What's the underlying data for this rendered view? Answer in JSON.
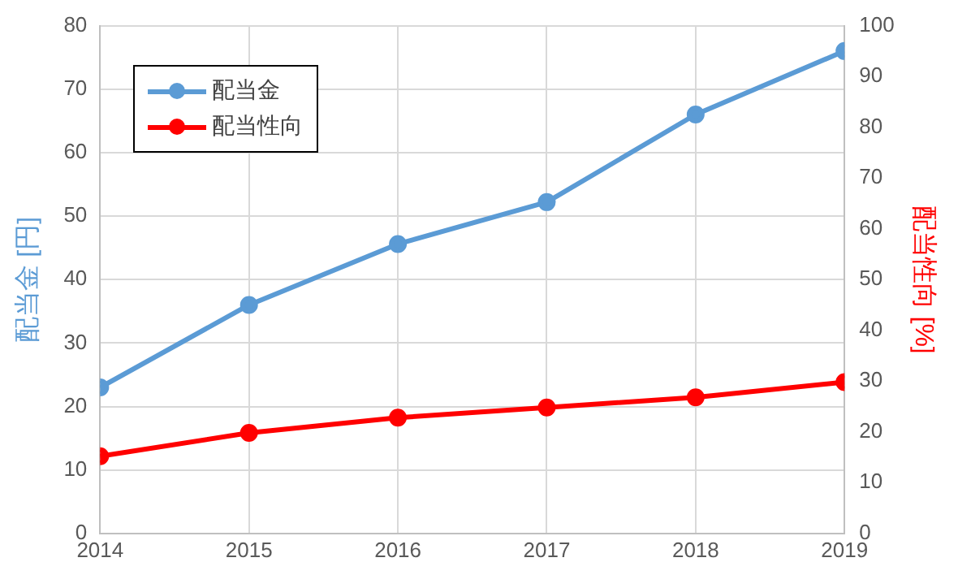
{
  "chart_data": {
    "type": "line",
    "x": [
      2014,
      2015,
      2016,
      2017,
      2018,
      2019
    ],
    "xlim": [
      2014,
      2019
    ],
    "xticks": [
      2014,
      2015,
      2016,
      2017,
      2018,
      2019
    ],
    "ylabel": "配当金 [円]",
    "y2label": "配当性向 [%]",
    "ylim": [
      0,
      80
    ],
    "yticks": [
      0,
      10,
      20,
      30,
      40,
      50,
      60,
      70,
      80
    ],
    "y2lim": [
      0,
      100
    ],
    "y2ticks": [
      0,
      10,
      20,
      30,
      40,
      50,
      60,
      70,
      80,
      90,
      100
    ],
    "series": [
      {
        "name": "配当金",
        "color": "#5b9bd5",
        "values": [
          23,
          36,
          45.6,
          52.2,
          66,
          76
        ]
      },
      {
        "name": "配当性向",
        "color": "#ff0000",
        "axis": "y2",
        "values": [
          15.2,
          19.8,
          22.8,
          24.8,
          26.8,
          29.8
        ]
      }
    ],
    "grid": true,
    "legend": "top left",
    "marker": "circle",
    "line_style": "solid"
  }
}
